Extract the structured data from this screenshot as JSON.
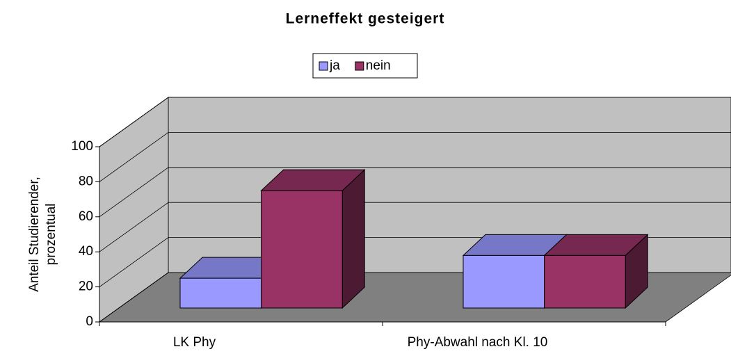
{
  "chart_data": {
    "type": "bar3d",
    "title": "Lerneffekt gesteigert",
    "y_label_lines": [
      "Anteil Studierender,",
      "prozentual"
    ],
    "categories": [
      "LK Phy",
      "Phy-Abwahl nach Kl. 10"
    ],
    "series": [
      {
        "name": "ja",
        "color": "#9999ff",
        "values": [
          17,
          30
        ]
      },
      {
        "name": "nein",
        "color": "#993366",
        "values": [
          67,
          30
        ]
      }
    ],
    "ylim": [
      0,
      100
    ],
    "yticks": [
      0,
      20,
      40,
      60,
      80,
      100
    ],
    "grid": true
  }
}
